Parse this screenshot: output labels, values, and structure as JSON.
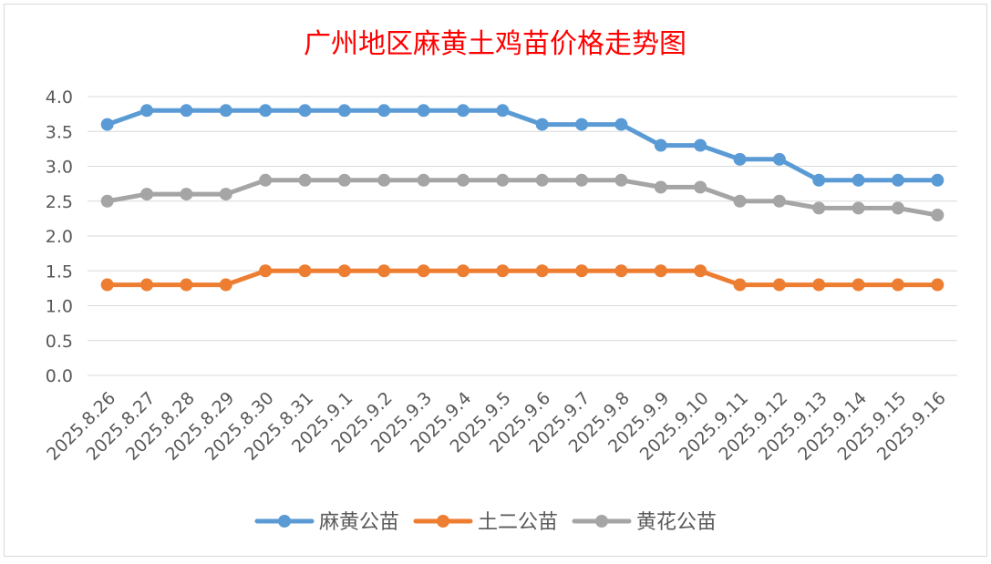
{
  "chart_data": {
    "type": "line",
    "title": "广州地区麻黄土鸡苗价格走势图",
    "xlabel": "",
    "ylabel": "",
    "ylim": [
      0,
      4.0
    ],
    "yticks": [
      "0.0",
      "0.5",
      "1.0",
      "1.5",
      "2.0",
      "2.5",
      "3.0",
      "3.5",
      "4.0"
    ],
    "grid": true,
    "legend_position": "bottom",
    "categories": [
      "2025.8.26",
      "2025.8.27",
      "2025.8.28",
      "2025.8.29",
      "2025.8.30",
      "2025.8.31",
      "2025.9.1",
      "2025.9.2",
      "2025.9.3",
      "2025.9.4",
      "2025.9.5",
      "2025.9.6",
      "2025.9.7",
      "2025.9.8",
      "2025.9.9",
      "2025.9.10",
      "2025.9.11",
      "2025.9.12",
      "2025.9.13",
      "2025.9.14",
      "2025.9.15",
      "2025.9.16"
    ],
    "series": [
      {
        "name": "麻黄公苗",
        "color": "#5B9BD5",
        "values": [
          3.6,
          3.8,
          3.8,
          3.8,
          3.8,
          3.8,
          3.8,
          3.8,
          3.8,
          3.8,
          3.8,
          3.6,
          3.6,
          3.6,
          3.3,
          3.3,
          3.1,
          3.1,
          2.8,
          2.8,
          2.8,
          2.8
        ]
      },
      {
        "name": "土二公苗",
        "color": "#ED7D31",
        "values": [
          1.3,
          1.3,
          1.3,
          1.3,
          1.5,
          1.5,
          1.5,
          1.5,
          1.5,
          1.5,
          1.5,
          1.5,
          1.5,
          1.5,
          1.5,
          1.5,
          1.3,
          1.3,
          1.3,
          1.3,
          1.3,
          1.3
        ]
      },
      {
        "name": "黄花公苗",
        "color": "#A5A5A5",
        "values": [
          2.5,
          2.6,
          2.6,
          2.6,
          2.8,
          2.8,
          2.8,
          2.8,
          2.8,
          2.8,
          2.8,
          2.8,
          2.8,
          2.8,
          2.7,
          2.7,
          2.5,
          2.5,
          2.4,
          2.4,
          2.4,
          2.3
        ]
      }
    ],
    "colors": {
      "title": "#FF0000",
      "axis_text": "#595959",
      "gridline": "#D9D9D9",
      "frame": "#D9D9D9"
    }
  }
}
